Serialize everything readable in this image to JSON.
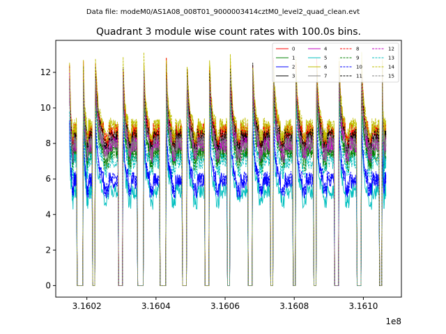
{
  "suptitle": "Data file: modeM0/AS1A08_008T01_9000003414cztM0_level2_quad_clean.evt",
  "chart_data": {
    "type": "line",
    "title": "Quadrant 3 module wise count rates with 100.0s bins.",
    "xlabel": "",
    "ylabel": "",
    "x_offset_label": "1e8",
    "xlim": [
      3.16011,
      3.16111
    ],
    "ylim": [
      -0.65,
      13.8
    ],
    "x_ticks": [
      3.1602,
      3.1604,
      3.1606,
      3.1608,
      3.161
    ],
    "x_tick_labels": [
      "3.1602",
      "3.1604",
      "3.1606",
      "3.1608",
      "3.1610"
    ],
    "y_ticks": [
      0,
      2,
      4,
      6,
      8,
      10,
      12
    ],
    "y_tick_labels": [
      "0",
      "2",
      "4",
      "6",
      "8",
      "10",
      "12"
    ],
    "grid": false,
    "legend_placement": "top-right",
    "orbit_segments": [
      [
        3.16015,
        3.16017
      ],
      [
        3.16019,
        3.160215
      ],
      [
        3.160225,
        3.16029
      ],
      [
        3.160305,
        3.160345
      ],
      [
        3.160365,
        3.16041
      ],
      [
        3.16043,
        3.160475
      ],
      [
        3.16049,
        3.16054
      ],
      [
        3.160555,
        3.160605
      ],
      [
        3.160615,
        3.160665
      ],
      [
        3.16068,
        3.16073
      ],
      [
        3.16074,
        3.160795
      ],
      [
        3.160805,
        3.160855
      ],
      [
        3.160865,
        3.160915
      ],
      [
        3.16093,
        3.16098
      ],
      [
        3.160995,
        3.161045
      ],
      [
        3.161055,
        3.161065
      ]
    ],
    "series": [
      {
        "name": "0",
        "color": "#ff0000",
        "dash": "solid",
        "level": 8.6
      },
      {
        "name": "1",
        "color": "#008000",
        "dash": "solid",
        "level": 7.6
      },
      {
        "name": "2",
        "color": "#0000ff",
        "dash": "solid",
        "level": 5.9
      },
      {
        "name": "3",
        "color": "#000000",
        "dash": "solid",
        "level": 8.3
      },
      {
        "name": "4",
        "color": "#bf00bf",
        "dash": "solid",
        "level": 8.0
      },
      {
        "name": "5",
        "color": "#00bfbf",
        "dash": "solid",
        "level": 5.3
      },
      {
        "name": "6",
        "color": "#bfbf00",
        "dash": "solid",
        "level": 8.9
      },
      {
        "name": "7",
        "color": "#808080",
        "dash": "solid",
        "level": 7.9
      },
      {
        "name": "8",
        "color": "#ff0000",
        "dash": "dashed",
        "level": 8.7
      },
      {
        "name": "9",
        "color": "#008000",
        "dash": "dashed",
        "level": 7.4
      },
      {
        "name": "10",
        "color": "#0000ff",
        "dash": "dashed",
        "level": 6.0
      },
      {
        "name": "11",
        "color": "#000000",
        "dash": "dashed",
        "level": 8.4
      },
      {
        "name": "12",
        "color": "#bf00bf",
        "dash": "dashed",
        "level": 7.9
      },
      {
        "name": "13",
        "color": "#00bfbf",
        "dash": "dashed",
        "level": 7.0
      },
      {
        "name": "14",
        "color": "#bfbf00",
        "dash": "dashed",
        "level": 9.0
      },
      {
        "name": "15",
        "color": "#808080",
        "dash": "dashed",
        "level": 8.1
      }
    ]
  }
}
